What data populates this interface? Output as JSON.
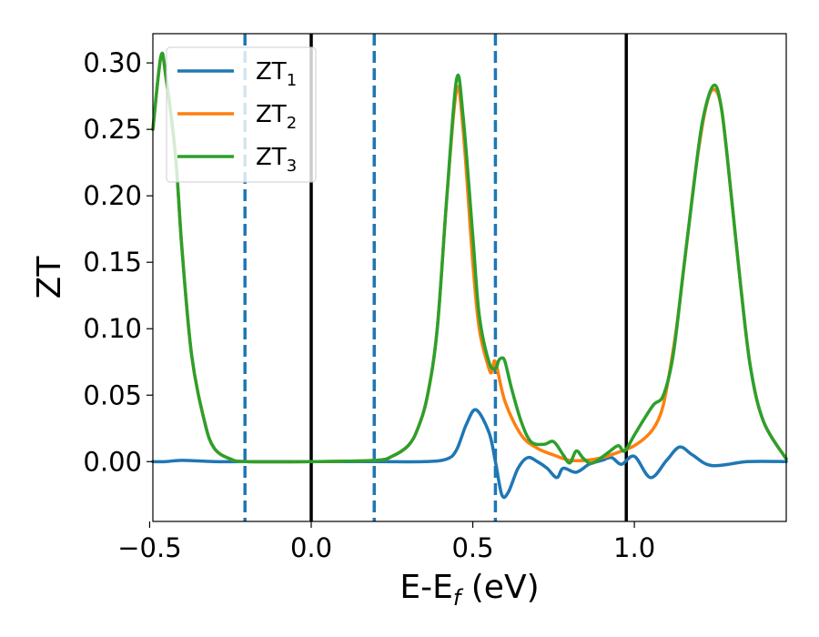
{
  "chart_data": {
    "type": "line",
    "xlabel": {
      "main": "E-E",
      "sub": "f",
      "tail": " (eV)"
    },
    "ylabel": "ZT",
    "xlim": [
      -0.49,
      1.47
    ],
    "ylim": [
      -0.045,
      0.322
    ],
    "xticks": [
      {
        "value": -0.5,
        "label": "−0.5"
      },
      {
        "value": 0.0,
        "label": "0.0"
      },
      {
        "value": 0.5,
        "label": "0.5"
      },
      {
        "value": 1.0,
        "label": "1.0"
      }
    ],
    "yticks": [
      {
        "value": 0.0,
        "label": "0.00"
      },
      {
        "value": 0.05,
        "label": "0.05"
      },
      {
        "value": 0.1,
        "label": "0.10"
      },
      {
        "value": 0.15,
        "label": "0.15"
      },
      {
        "value": 0.2,
        "label": "0.20"
      },
      {
        "value": 0.25,
        "label": "0.25"
      },
      {
        "value": 0.3,
        "label": "0.30"
      }
    ],
    "legend": {
      "placement": "top-left"
    },
    "vertical_lines": [
      {
        "x": -0.205,
        "style": "dashed",
        "color": "#1f77b4"
      },
      {
        "x": 0.0,
        "style": "solid",
        "color": "#000000"
      },
      {
        "x": 0.195,
        "style": "dashed",
        "color": "#1f77b4"
      },
      {
        "x": 0.57,
        "style": "dashed",
        "color": "#1f77b4"
      },
      {
        "x": 0.975,
        "style": "solid",
        "color": "#000000"
      }
    ],
    "series": [
      {
        "name": "ZT",
        "sub": "1",
        "color": "#1f77b4",
        "x": [
          -0.49,
          -0.45,
          -0.4,
          -0.3,
          -0.2,
          0.0,
          0.2,
          0.35,
          0.42,
          0.45,
          0.48,
          0.51,
          0.55,
          0.57,
          0.59,
          0.61,
          0.64,
          0.67,
          0.7,
          0.73,
          0.76,
          0.78,
          0.82,
          0.86,
          0.9,
          0.93,
          0.96,
          1.0,
          1.05,
          1.1,
          1.14,
          1.18,
          1.24,
          1.35,
          1.47
        ],
        "y": [
          0.0,
          0.0,
          0.001,
          0.0,
          0.0,
          0.0,
          0.0,
          0.0,
          0.002,
          0.009,
          0.028,
          0.039,
          0.022,
          0.0,
          -0.025,
          -0.023,
          -0.005,
          0.003,
          0.0,
          -0.005,
          -0.012,
          -0.005,
          -0.008,
          -0.002,
          0.001,
          0.003,
          -0.002,
          0.004,
          -0.012,
          0.001,
          0.011,
          0.005,
          -0.003,
          0.0,
          0.0
        ]
      },
      {
        "name": "ZT",
        "sub": "2",
        "color": "#ff7f0e",
        "x": [
          -0.49,
          -0.465,
          -0.45,
          -0.42,
          -0.4,
          -0.37,
          -0.33,
          -0.3,
          -0.25,
          -0.2,
          0.0,
          0.2,
          0.25,
          0.3,
          0.33,
          0.36,
          0.39,
          0.42,
          0.45,
          0.47,
          0.5,
          0.52,
          0.55,
          0.56,
          0.57,
          0.6,
          0.65,
          0.7,
          0.75,
          0.8,
          0.85,
          0.9,
          0.95,
          1.0,
          1.05,
          1.08,
          1.1,
          1.13,
          1.16,
          1.19,
          1.22,
          1.245,
          1.27,
          1.3,
          1.33,
          1.36,
          1.4,
          1.47
        ],
        "y": [
          0.25,
          0.305,
          0.29,
          0.23,
          0.16,
          0.08,
          0.03,
          0.01,
          0.002,
          0.0,
          0.0,
          0.001,
          0.004,
          0.012,
          0.025,
          0.05,
          0.1,
          0.2,
          0.28,
          0.25,
          0.15,
          0.1,
          0.07,
          0.068,
          0.075,
          0.045,
          0.02,
          0.01,
          0.005,
          0.001,
          0.001,
          0.003,
          0.007,
          0.012,
          0.022,
          0.035,
          0.055,
          0.1,
          0.16,
          0.22,
          0.265,
          0.28,
          0.265,
          0.2,
          0.13,
          0.07,
          0.03,
          0.002
        ]
      },
      {
        "name": "ZT",
        "sub": "3",
        "color": "#2ca02c",
        "x": [
          -0.49,
          -0.465,
          -0.45,
          -0.42,
          -0.4,
          -0.37,
          -0.33,
          -0.3,
          -0.25,
          -0.2,
          0.0,
          0.2,
          0.25,
          0.3,
          0.33,
          0.36,
          0.39,
          0.42,
          0.45,
          0.47,
          0.5,
          0.52,
          0.55,
          0.57,
          0.58,
          0.59,
          0.6,
          0.62,
          0.65,
          0.68,
          0.72,
          0.75,
          0.78,
          0.8,
          0.82,
          0.84,
          0.86,
          0.88,
          0.92,
          0.95,
          0.97,
          1.0,
          1.03,
          1.06,
          1.09,
          1.12,
          1.15,
          1.18,
          1.21,
          1.245,
          1.27,
          1.3,
          1.33,
          1.36,
          1.4,
          1.47
        ],
        "y": [
          0.25,
          0.305,
          0.29,
          0.23,
          0.16,
          0.08,
          0.03,
          0.01,
          0.002,
          0.0,
          0.0,
          0.001,
          0.004,
          0.012,
          0.025,
          0.05,
          0.1,
          0.2,
          0.288,
          0.26,
          0.17,
          0.11,
          0.075,
          0.07,
          0.076,
          0.078,
          0.075,
          0.055,
          0.03,
          0.015,
          0.013,
          0.015,
          0.005,
          -0.001,
          0.008,
          0.003,
          -0.001,
          0.0,
          0.007,
          0.012,
          0.008,
          0.02,
          0.032,
          0.043,
          0.05,
          0.08,
          0.14,
          0.2,
          0.255,
          0.283,
          0.265,
          0.2,
          0.13,
          0.07,
          0.03,
          0.002
        ]
      }
    ]
  }
}
